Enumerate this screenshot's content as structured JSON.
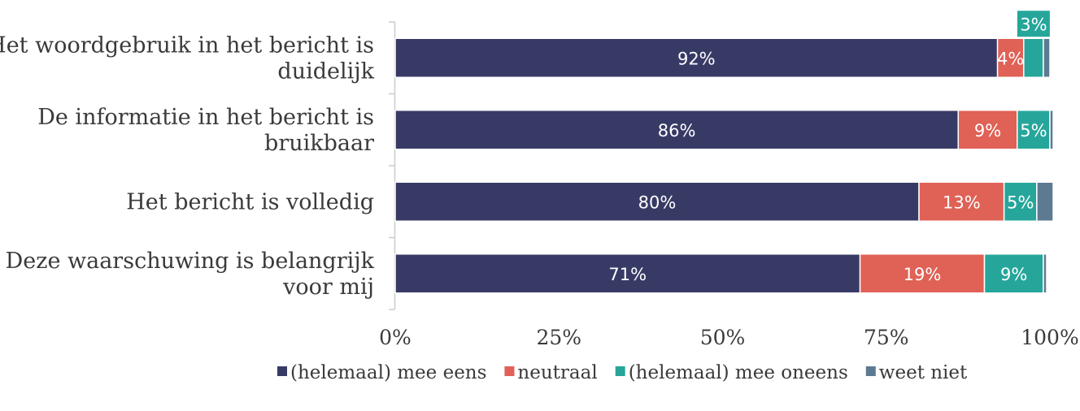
{
  "chart_data": {
    "type": "bar",
    "orientation": "horizontal",
    "stacked": true,
    "title": "",
    "xlabel": "",
    "ylabel": "",
    "xlim": [
      0,
      100
    ],
    "x_ticks": [
      "0%",
      "25%",
      "50%",
      "75%",
      "100%"
    ],
    "grid": false,
    "legend_position": "bottom",
    "categories": [
      [
        "Het woordgebruik in het bericht is",
        "duidelijk"
      ],
      [
        "De informatie in het bericht is",
        "bruikbaar"
      ],
      [
        "Het bericht is volledig"
      ],
      [
        "Deze waarschuwing is belangrijk",
        "voor mij"
      ]
    ],
    "series": [
      {
        "name": "(helemaal) mee eens",
        "color": "#383a66",
        "values": [
          92,
          86,
          80,
          71
        ],
        "labels": [
          "92%",
          "86%",
          "80%",
          "71%"
        ]
      },
      {
        "name": "neutraal",
        "color": "#e06156",
        "values": [
          4,
          9,
          13,
          19
        ],
        "labels": [
          "4%",
          "9%",
          "13%",
          "19%"
        ]
      },
      {
        "name": "(helemaal) mee oneens",
        "color": "#26a69a",
        "values": [
          3,
          5,
          5,
          9
        ],
        "labels": [
          "3%",
          "5%",
          "5%",
          "9%"
        ]
      },
      {
        "name": "weet niet",
        "color": "#5d7a93",
        "values": [
          1,
          0.5,
          2.5,
          0.5
        ],
        "labels": [
          "",
          "",
          "",
          ""
        ]
      }
    ]
  }
}
